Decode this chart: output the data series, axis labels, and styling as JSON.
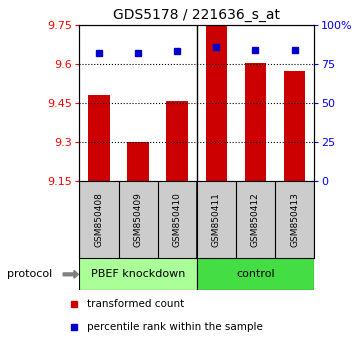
{
  "title": "GDS5178 / 221636_s_at",
  "samples": [
    "GSM850408",
    "GSM850409",
    "GSM850410",
    "GSM850411",
    "GSM850412",
    "GSM850413"
  ],
  "bar_values": [
    9.48,
    9.3,
    9.455,
    9.75,
    9.602,
    9.572
  ],
  "percentile_values": [
    82,
    82,
    83,
    86,
    84,
    84
  ],
  "bar_color": "#cc0000",
  "dot_color": "#0000cc",
  "ylim_left": [
    9.15,
    9.75
  ],
  "ylim_right": [
    0,
    100
  ],
  "yticks_left": [
    9.15,
    9.3,
    9.45,
    9.6,
    9.75
  ],
  "yticks_right": [
    0,
    25,
    50,
    75,
    100
  ],
  "ytick_labels_right": [
    "0",
    "25",
    "50",
    "75",
    "100%"
  ],
  "hlines": [
    9.3,
    9.45,
    9.6,
    9.75
  ],
  "groups": [
    {
      "label": "PBEF knockdown",
      "indices": [
        0,
        1,
        2
      ],
      "color": "#aaff99"
    },
    {
      "label": "control",
      "indices": [
        3,
        4,
        5
      ],
      "color": "#44dd44"
    }
  ],
  "protocol_label": "protocol",
  "legend_bar_label": "transformed count",
  "legend_dot_label": "percentile rank within the sample",
  "background_plot": "#ffffff",
  "background_sample_box": "#cccccc",
  "title_fontsize": 10,
  "tick_fontsize": 8,
  "bar_width": 0.55
}
